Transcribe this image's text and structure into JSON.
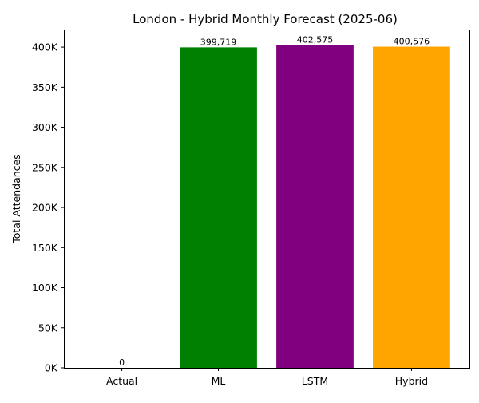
{
  "chart_data": {
    "type": "bar",
    "title": "London - Hybrid Monthly Forecast (2025-06)",
    "xlabel": "",
    "ylabel": "Total Attendances",
    "categories": [
      "Actual",
      "ML",
      "LSTM",
      "Hybrid"
    ],
    "values": [
      0,
      399719,
      402575,
      400576
    ],
    "value_labels": [
      "0",
      "399,719",
      "402,575",
      "400,576"
    ],
    "colors": [
      "#1f77b4",
      "#008000",
      "#800080",
      "#ffa500"
    ],
    "ylim": [
      0,
      422000
    ],
    "yticks": [
      0,
      50000,
      100000,
      150000,
      200000,
      250000,
      300000,
      350000,
      400000
    ],
    "ytick_labels": [
      "0K",
      "50K",
      "100K",
      "150K",
      "200K",
      "250K",
      "300K",
      "350K",
      "400K"
    ],
    "grid": false,
    "legend": "none"
  }
}
